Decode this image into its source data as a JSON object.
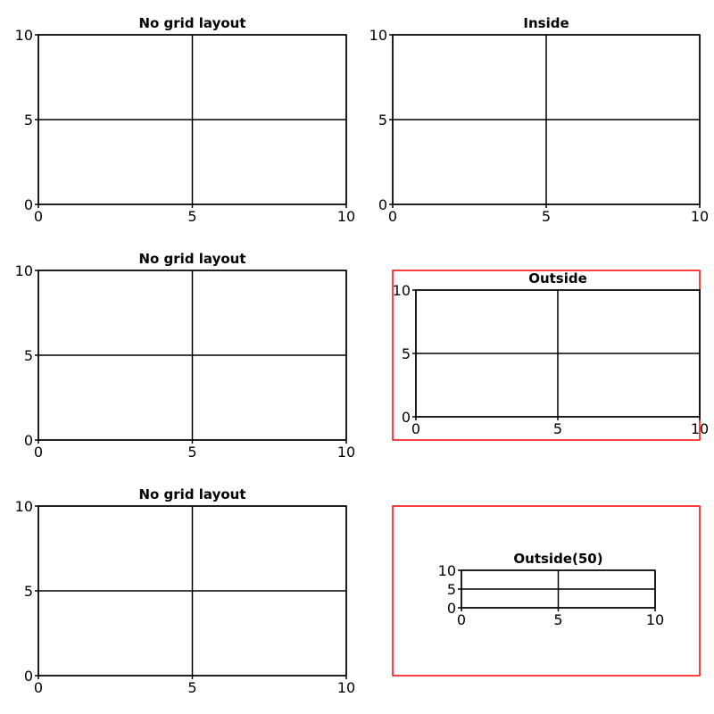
{
  "colors": {
    "frame": "#ff0000",
    "line": "#000000",
    "background": "#ffffff"
  },
  "chart_data": [
    {
      "type": "line",
      "title": "No grid layout",
      "xlim": [
        0,
        10
      ],
      "ylim": [
        0,
        10
      ],
      "xticks": [
        0,
        5,
        10
      ],
      "yticks": [
        0,
        5,
        10
      ],
      "grid": true,
      "framed": false
    },
    {
      "type": "line",
      "title": "Inside",
      "xlim": [
        0,
        10
      ],
      "ylim": [
        0,
        10
      ],
      "xticks": [
        0,
        5,
        10
      ],
      "yticks": [
        0,
        5,
        10
      ],
      "grid": true,
      "framed": false
    },
    {
      "type": "line",
      "title": "No grid layout",
      "xlim": [
        0,
        10
      ],
      "ylim": [
        0,
        10
      ],
      "xticks": [
        0,
        5,
        10
      ],
      "yticks": [
        0,
        5,
        10
      ],
      "grid": true,
      "framed": false
    },
    {
      "type": "line",
      "title": "Outside",
      "xlim": [
        0,
        10
      ],
      "ylim": [
        0,
        10
      ],
      "xticks": [
        0,
        5,
        10
      ],
      "yticks": [
        0,
        5,
        10
      ],
      "grid": true,
      "framed": true
    },
    {
      "type": "line",
      "title": "No grid layout",
      "xlim": [
        0,
        10
      ],
      "ylim": [
        0,
        10
      ],
      "xticks": [
        0,
        5,
        10
      ],
      "yticks": [
        0,
        5,
        10
      ],
      "grid": true,
      "framed": false
    },
    {
      "type": "line",
      "title": "Outside(50)",
      "xlim": [
        0,
        10
      ],
      "ylim": [
        0,
        10
      ],
      "xticks": [
        0,
        5,
        10
      ],
      "yticks": [
        0,
        5,
        10
      ],
      "grid": true,
      "framed": true
    }
  ]
}
